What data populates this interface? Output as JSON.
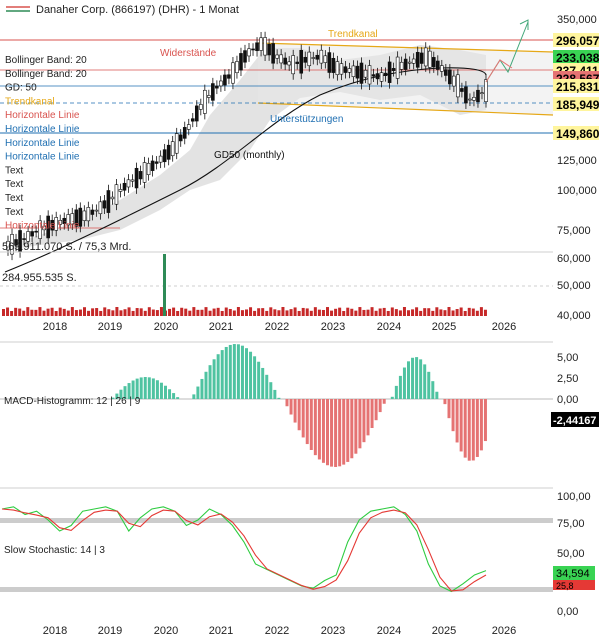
{
  "header": {
    "title": "Danaher Corp. (866197) (DHR) - 1 Monat",
    "line_colors": [
      "#d9534f",
      "#2e8b57"
    ]
  },
  "price_panel": {
    "y_ticks": [
      "350,000",
      "125,000",
      "100,000",
      "75,000"
    ],
    "price_badges": [
      {
        "label": "296,057",
        "value": 296.057,
        "bg": "#fff59d"
      },
      {
        "label": "233,038",
        "value": 232,
        "bg": "#39d353"
      },
      {
        "label": "237,411",
        "value": 237.411,
        "bg": "#fff59d"
      },
      {
        "label": "228,567",
        "value": 226,
        "bg": "#e57373"
      },
      {
        "label": "215,831",
        "value": 215.831,
        "bg": "#fff59d"
      },
      {
        "label": "185,949",
        "value": 185.949,
        "bg": "#fff59d"
      },
      {
        "label": "149,860",
        "value": 149.86,
        "bg": "#fff59d"
      }
    ],
    "legend": [
      {
        "text": "Bollinger Band: 20",
        "color": "#222222"
      },
      {
        "text": "Bollinger Band: 20",
        "color": "#222222"
      },
      {
        "text": "GD: 50",
        "color": "#222222"
      },
      {
        "text": "Trendkanal",
        "color": "#e6a817"
      },
      {
        "text": "Horizontale Linie",
        "color": "#d9534f"
      },
      {
        "text": "Horizontale Linie",
        "color": "#1f6fb2"
      },
      {
        "text": "Horizontale Linie",
        "color": "#1f6fb2"
      },
      {
        "text": "Horizontale Linie",
        "color": "#1f6fb2"
      },
      {
        "text": "Text",
        "color": "#222222"
      },
      {
        "text": "Text",
        "color": "#222222"
      },
      {
        "text": "Text",
        "color": "#222222"
      },
      {
        "text": "Text",
        "color": "#222222"
      },
      {
        "text": "Horizontale Linie",
        "color": "#d9534f"
      }
    ],
    "annotations": {
      "widerstaende": "Widerstände",
      "trendkanal": "Trendkanal",
      "unterstuetzungen": "Unterstützungen",
      "gd50": "GD50 (monthly)"
    }
  },
  "volume_panel": {
    "label_top": "569.911.070 S. / 75,3 Mrd.",
    "label_mid": "284.955.535 S.",
    "y_ticks": [
      "60,000",
      "50,000",
      "40,000"
    ]
  },
  "macd_panel": {
    "label": "MACD-Histogramm: 12 | 26 | 9",
    "y_ticks": [
      "5,00",
      "2,50",
      "0,00"
    ],
    "last_value": "-2,44167",
    "pos_color": "#4fc3a1",
    "neg_color": "#e57373"
  },
  "stoch_panel": {
    "label": "Slow Stochastic: 14 | 3",
    "y_ticks": [
      "100,00",
      "75,00",
      "50,00",
      "0,00"
    ],
    "last_green": "34,594",
    "last_red": "25,8",
    "k_color": "#2ecc40",
    "d_color": "#e53935"
  },
  "x_axis": {
    "years": [
      "2018",
      "2019",
      "2020",
      "2021",
      "2022",
      "2023",
      "2024",
      "2025",
      "2026"
    ]
  },
  "chart_data": {
    "type": "line",
    "title": "Danaher Corp. (866197) (DHR) - 1 Monat",
    "x": [
      "2017-08",
      "2017-11",
      "2018-02",
      "2018-05",
      "2018-08",
      "2018-11",
      "2019-02",
      "2019-05",
      "2019-08",
      "2019-11",
      "2020-02",
      "2020-05",
      "2020-08",
      "2020-11",
      "2021-02",
      "2021-05",
      "2021-08",
      "2021-11",
      "2022-02",
      "2022-05",
      "2022-08",
      "2022-11",
      "2023-02",
      "2023-05",
      "2023-08",
      "2023-11",
      "2024-02",
      "2024-05",
      "2024-08",
      "2024-11",
      "2025-02",
      "2025-05",
      "2025-08"
    ],
    "series": [
      {
        "values": [
          72,
          75,
          80,
          83,
          86,
          88,
          92,
          100,
          110,
          118,
          128,
          140,
          160,
          190,
          215,
          235,
          270,
          290,
          265,
          250,
          260,
          265,
          245,
          240,
          235,
          230,
          245,
          255,
          265,
          245,
          220,
          195,
          210
        ]
      }
    ],
    "horizontal_levels": [
      296.057,
      237.411,
      215.831,
      185.949,
      149.86
    ],
    "ylim": [
      60,
      360
    ]
  }
}
